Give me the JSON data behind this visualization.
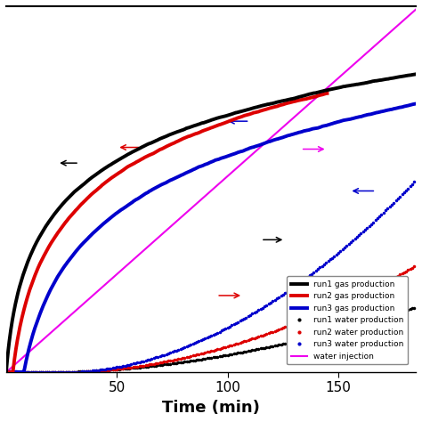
{
  "xlabel": "Time (min)",
  "xlim": [
    0,
    185
  ],
  "ylim_data": [
    0,
    1.05
  ],
  "figsize": [
    4.74,
    4.74
  ],
  "dpi": 100,
  "colors": {
    "run1_gas": "#000000",
    "run2_gas": "#dd0000",
    "run3_gas": "#0000cc",
    "run1_water": "#000000",
    "run2_water": "#dd0000",
    "run3_water": "#0000cc",
    "water_injection": "#ee00ee"
  },
  "legend_labels": [
    "run1 gas production",
    "run2 gas production",
    "run3 gas production",
    "run1 water production",
    "run2 water production",
    "run3 water production",
    "water injection"
  ],
  "xticks": [
    50,
    100,
    150
  ],
  "gas_lw": 2.8,
  "water_lw": 1.2,
  "inj_lw": 1.5
}
